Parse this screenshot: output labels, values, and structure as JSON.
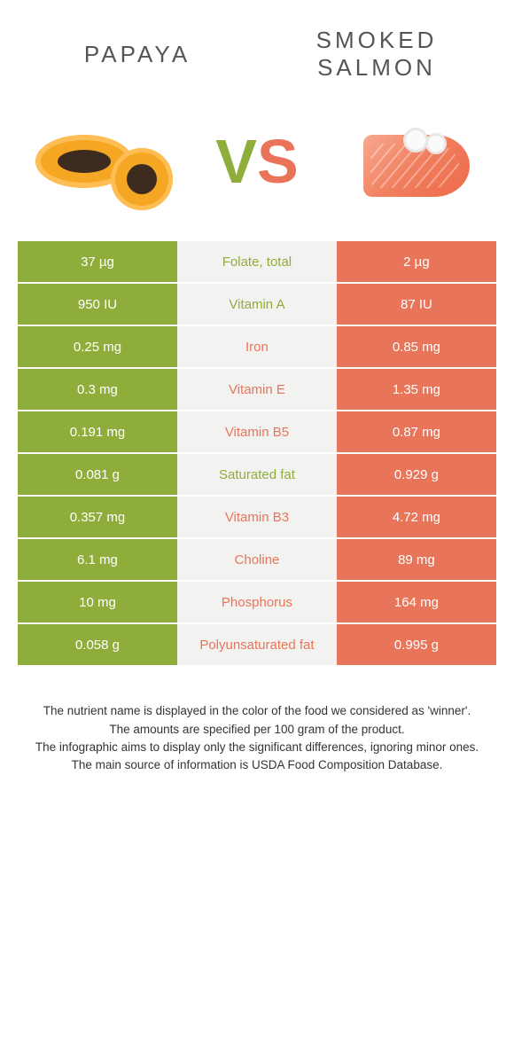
{
  "colors": {
    "left": "#8fad3a",
    "right": "#e8755a",
    "mid_bg": "#f2f2f1"
  },
  "header": {
    "left_title": "PAPAYA",
    "right_title": "SMOKED SALMON",
    "vs_v": "V",
    "vs_s": "S"
  },
  "rows": [
    {
      "left": "37 µg",
      "label": "Folate, total",
      "winner": "left",
      "right": "2 µg"
    },
    {
      "left": "950 IU",
      "label": "Vitamin A",
      "winner": "left",
      "right": "87 IU"
    },
    {
      "left": "0.25 mg",
      "label": "Iron",
      "winner": "right",
      "right": "0.85 mg"
    },
    {
      "left": "0.3 mg",
      "label": "Vitamin E",
      "winner": "right",
      "right": "1.35 mg"
    },
    {
      "left": "0.191 mg",
      "label": "Vitamin B5",
      "winner": "right",
      "right": "0.87 mg"
    },
    {
      "left": "0.081 g",
      "label": "Saturated fat",
      "winner": "left",
      "right": "0.929 g"
    },
    {
      "left": "0.357 mg",
      "label": "Vitamin B3",
      "winner": "right",
      "right": "4.72 mg"
    },
    {
      "left": "6.1 mg",
      "label": "Choline",
      "winner": "right",
      "right": "89 mg"
    },
    {
      "left": "10 mg",
      "label": "Phosphorus",
      "winner": "right",
      "right": "164 mg"
    },
    {
      "left": "0.058 g",
      "label": "Polyunsaturated fat",
      "winner": "right",
      "right": "0.995 g"
    }
  ],
  "footer": {
    "line1": "The nutrient name is displayed in the color of the food we considered as 'winner'.",
    "line2": "The amounts are specified per 100 gram of the product.",
    "line3": "The infographic aims to display only the significant differences, ignoring minor ones.",
    "line4": "The main source of information is USDA Food Composition Database."
  }
}
